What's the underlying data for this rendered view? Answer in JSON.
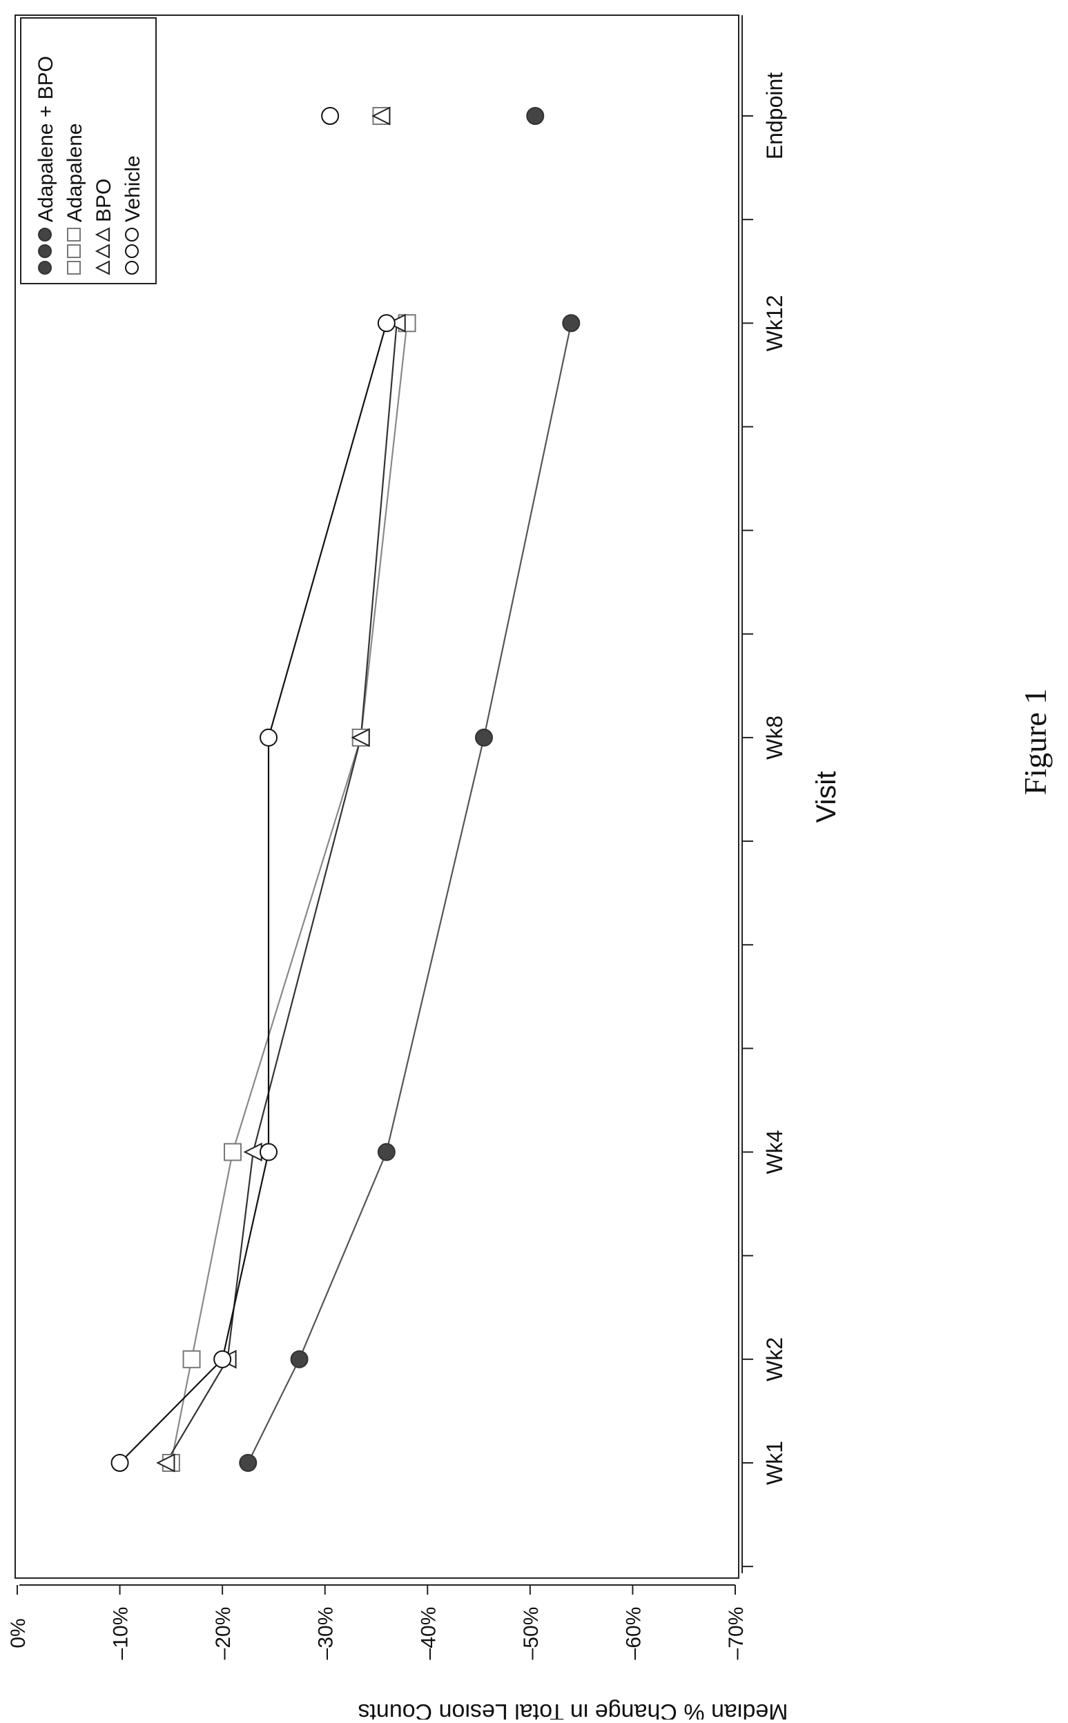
{
  "figure_caption": "Figure 1",
  "chart_data": {
    "type": "line",
    "orientation": "rotated-90-clockwise",
    "title": "",
    "xlabel": "Visit",
    "ylabel": "Median % Change in Total Lesion Counts",
    "x_categories": [
      "Wk1",
      "Wk2",
      "Wk4",
      "Wk8",
      "Wk12",
      "Endpoint"
    ],
    "x_positions": [
      1,
      2,
      4,
      8,
      12,
      14
    ],
    "xlim": [
      -1,
      15
    ],
    "ylim": [
      0,
      -70
    ],
    "y_ticks": [
      0,
      -10,
      -20,
      -30,
      -40,
      -50,
      -60,
      -70
    ],
    "y_tick_labels": [
      "0%",
      "–10%",
      "–20%",
      "–30%",
      "–40%",
      "–50%",
      "–60%",
      "–70%"
    ],
    "legend_position": "top-right",
    "legend": [
      {
        "marker": "filled-circle",
        "label": "Adapalene + BPO"
      },
      {
        "marker": "square",
        "label": "Adapalene"
      },
      {
        "marker": "triangle",
        "label": "BPO"
      },
      {
        "marker": "circle",
        "label": "Vehicle"
      }
    ],
    "series": [
      {
        "name": "Adapalene + BPO",
        "marker": "filled-circle",
        "color": "#555555",
        "values": [
          -22.5,
          -27.5,
          -36.0,
          -45.5,
          -54.0,
          -50.5
        ]
      },
      {
        "name": "Adapalene",
        "marker": "square",
        "color": "#888888",
        "values": [
          -15.0,
          -17.0,
          -21.0,
          -33.5,
          -38.0,
          -35.5
        ]
      },
      {
        "name": "BPO",
        "marker": "triangle",
        "color": "#333333",
        "values": [
          -14.5,
          -20.5,
          -23.0,
          -33.5,
          -37.0,
          -35.5
        ]
      },
      {
        "name": "Vehicle",
        "marker": "circle",
        "color": "#111111",
        "values": [
          -10.0,
          -20.0,
          -24.5,
          -24.5,
          -36.0,
          -30.5
        ]
      }
    ]
  }
}
